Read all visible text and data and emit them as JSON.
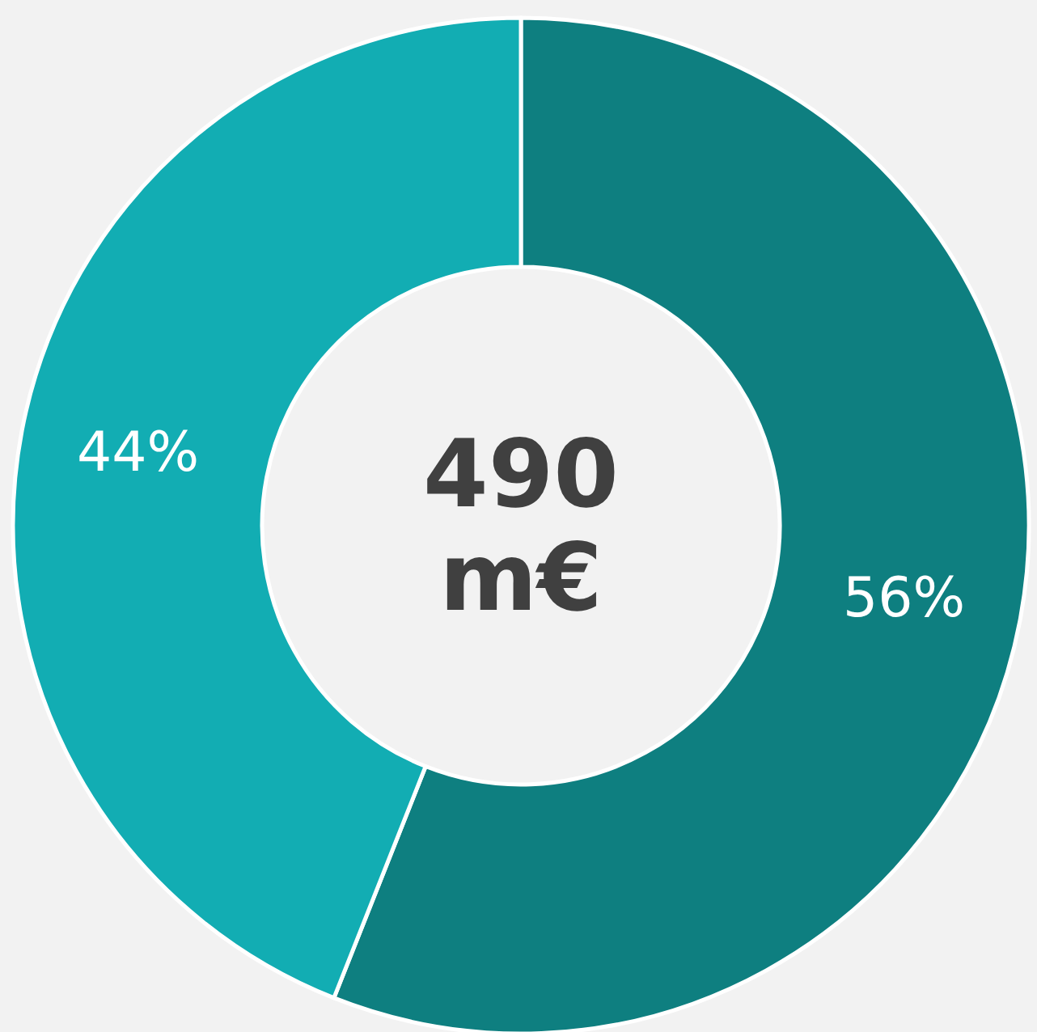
{
  "chart_data": {
    "type": "donut",
    "categories": [
      null,
      null
    ],
    "values": [
      56,
      44
    ],
    "colors": [
      "#0e7f80",
      "#12adb3"
    ],
    "value_labels": [
      "56%",
      "44%"
    ],
    "annotations": [
      "490 m€"
    ]
  }
}
